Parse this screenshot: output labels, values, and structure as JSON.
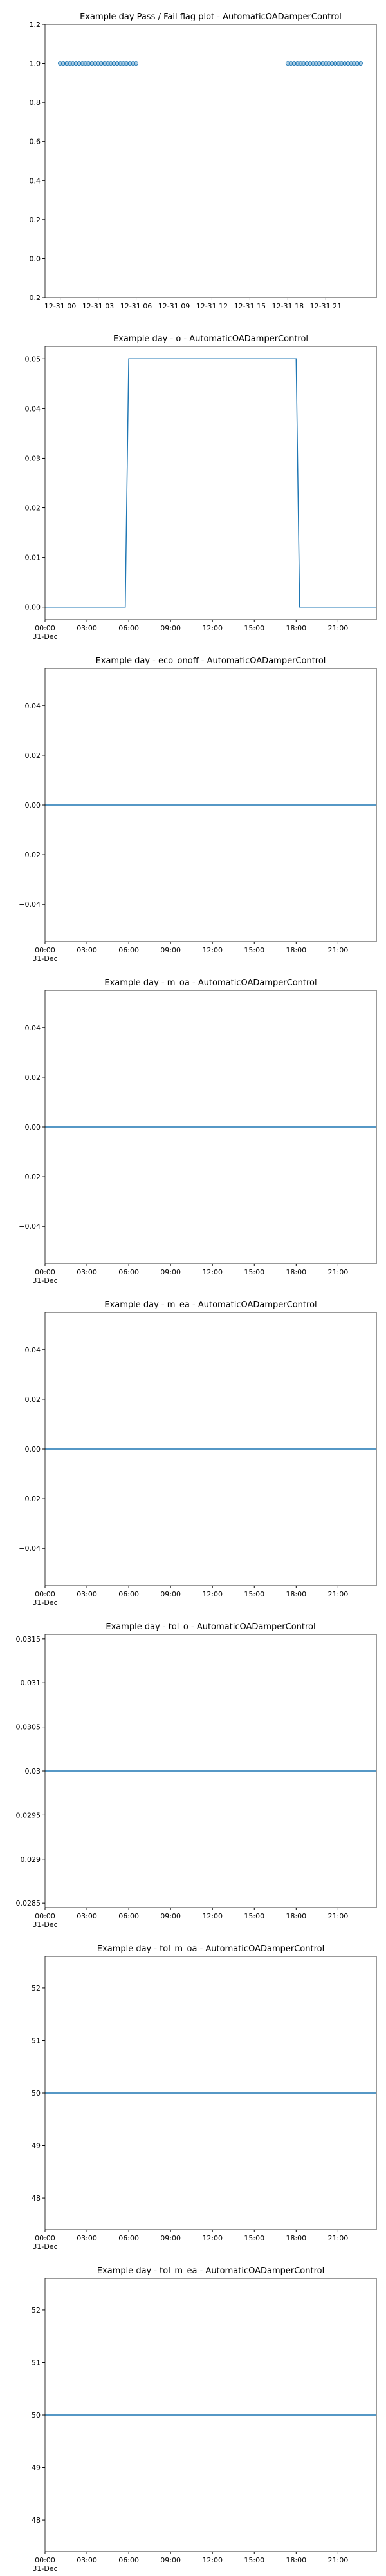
{
  "chart_data": [
    {
      "type": "scatter",
      "title": "Example day Pass / Fail flag plot - AutomaticOADamperControl",
      "color": "#1f77b4",
      "x": [
        0,
        0.25,
        0.5,
        0.75,
        1,
        1.25,
        1.5,
        1.75,
        2,
        2.25,
        2.5,
        2.75,
        3,
        3.25,
        3.5,
        3.75,
        4,
        4.25,
        4.5,
        4.75,
        5,
        5.25,
        5.5,
        5.75,
        6,
        18,
        18.25,
        18.5,
        18.75,
        19,
        19.25,
        19.5,
        19.75,
        20,
        20.25,
        20.5,
        20.75,
        21,
        21.25,
        21.5,
        21.75,
        22,
        22.25,
        22.5,
        22.75,
        23,
        23.25,
        23.5,
        23.75
      ],
      "values": [
        1,
        1,
        1,
        1,
        1,
        1,
        1,
        1,
        1,
        1,
        1,
        1,
        1,
        1,
        1,
        1,
        1,
        1,
        1,
        1,
        1,
        1,
        1,
        1,
        1,
        1,
        1,
        1,
        1,
        1,
        1,
        1,
        1,
        1,
        1,
        1,
        1,
        1,
        1,
        1,
        1,
        1,
        1,
        1,
        1,
        1,
        1,
        1,
        1
      ],
      "xlim": [
        -1.2,
        25
      ],
      "ylim": [
        -0.2,
        1.2
      ],
      "xticks": [
        {
          "value": 0,
          "label": "12-31 00"
        },
        {
          "value": 3,
          "label": "12-31 03"
        },
        {
          "value": 6,
          "label": "12-31 06"
        },
        {
          "value": 9,
          "label": "12-31 09"
        },
        {
          "value": 12,
          "label": "12-31 12"
        },
        {
          "value": 15,
          "label": "12-31 15"
        },
        {
          "value": 18,
          "label": "12-31 18"
        },
        {
          "value": 21,
          "label": "12-31 21"
        }
      ],
      "yticks": [
        {
          "value": -0.2,
          "label": "−0.2"
        },
        {
          "value": 0,
          "label": "0.0"
        },
        {
          "value": 0.2,
          "label": "0.2"
        },
        {
          "value": 0.4,
          "label": "0.4"
        },
        {
          "value": 0.6,
          "label": "0.6"
        },
        {
          "value": 0.8,
          "label": "0.8"
        },
        {
          "value": 1,
          "label": "1.0"
        },
        {
          "value": 1.2,
          "label": "1.2"
        }
      ]
    },
    {
      "type": "line",
      "title": "Example day - o - AutomaticOADamperControl",
      "color": "#1f77b4",
      "x": [
        0,
        5.75,
        6,
        18,
        18.25,
        23.75
      ],
      "values": [
        0,
        0,
        0.05,
        0.05,
        0,
        0
      ],
      "xlim": [
        0,
        23.75
      ],
      "ylim": [
        -0.0025,
        0.0525
      ],
      "xticks": [
        {
          "value": 0,
          "label": "00:00\n31-Dec"
        },
        {
          "value": 3,
          "label": "03:00"
        },
        {
          "value": 6,
          "label": "06:00"
        },
        {
          "value": 9,
          "label": "09:00"
        },
        {
          "value": 12,
          "label": "12:00"
        },
        {
          "value": 15,
          "label": "15:00"
        },
        {
          "value": 18,
          "label": "18:00"
        },
        {
          "value": 21,
          "label": "21:00"
        }
      ],
      "yticks": [
        {
          "value": 0,
          "label": "0.00"
        },
        {
          "value": 0.01,
          "label": "0.01"
        },
        {
          "value": 0.02,
          "label": "0.02"
        },
        {
          "value": 0.03,
          "label": "0.03"
        },
        {
          "value": 0.04,
          "label": "0.04"
        },
        {
          "value": 0.05,
          "label": "0.05"
        }
      ]
    },
    {
      "type": "line",
      "title": "Example day - eco_onoff - AutomaticOADamperControl",
      "color": "#1f77b4",
      "x": [
        0,
        23.75
      ],
      "values": [
        0,
        0
      ],
      "xlim": [
        0,
        23.75
      ],
      "ylim": [
        -0.055,
        0.055
      ],
      "xticks": [
        {
          "value": 0,
          "label": "00:00\n31-Dec"
        },
        {
          "value": 3,
          "label": "03:00"
        },
        {
          "value": 6,
          "label": "06:00"
        },
        {
          "value": 9,
          "label": "09:00"
        },
        {
          "value": 12,
          "label": "12:00"
        },
        {
          "value": 15,
          "label": "15:00"
        },
        {
          "value": 18,
          "label": "18:00"
        },
        {
          "value": 21,
          "label": "21:00"
        }
      ],
      "yticks": [
        {
          "value": -0.04,
          "label": "−0.04"
        },
        {
          "value": -0.02,
          "label": "−0.02"
        },
        {
          "value": 0,
          "label": "0.00"
        },
        {
          "value": 0.02,
          "label": "0.02"
        },
        {
          "value": 0.04,
          "label": "0.04"
        }
      ]
    },
    {
      "type": "line",
      "title": "Example day - m_oa - AutomaticOADamperControl",
      "color": "#1f77b4",
      "x": [
        0,
        23.75
      ],
      "values": [
        0,
        0
      ],
      "xlim": [
        0,
        23.75
      ],
      "ylim": [
        -0.055,
        0.055
      ],
      "xticks": [
        {
          "value": 0,
          "label": "00:00\n31-Dec"
        },
        {
          "value": 3,
          "label": "03:00"
        },
        {
          "value": 6,
          "label": "06:00"
        },
        {
          "value": 9,
          "label": "09:00"
        },
        {
          "value": 12,
          "label": "12:00"
        },
        {
          "value": 15,
          "label": "15:00"
        },
        {
          "value": 18,
          "label": "18:00"
        },
        {
          "value": 21,
          "label": "21:00"
        }
      ],
      "yticks": [
        {
          "value": -0.04,
          "label": "−0.04"
        },
        {
          "value": -0.02,
          "label": "−0.02"
        },
        {
          "value": 0,
          "label": "0.00"
        },
        {
          "value": 0.02,
          "label": "0.02"
        },
        {
          "value": 0.04,
          "label": "0.04"
        }
      ]
    },
    {
      "type": "line",
      "title": "Example day - m_ea - AutomaticOADamperControl",
      "color": "#1f77b4",
      "x": [
        0,
        23.75
      ],
      "values": [
        0,
        0
      ],
      "xlim": [
        0,
        23.75
      ],
      "ylim": [
        -0.055,
        0.055
      ],
      "xticks": [
        {
          "value": 0,
          "label": "00:00\n31-Dec"
        },
        {
          "value": 3,
          "label": "03:00"
        },
        {
          "value": 6,
          "label": "06:00"
        },
        {
          "value": 9,
          "label": "09:00"
        },
        {
          "value": 12,
          "label": "12:00"
        },
        {
          "value": 15,
          "label": "15:00"
        },
        {
          "value": 18,
          "label": "18:00"
        },
        {
          "value": 21,
          "label": "21:00"
        }
      ],
      "yticks": [
        {
          "value": -0.04,
          "label": "−0.04"
        },
        {
          "value": -0.02,
          "label": "−0.02"
        },
        {
          "value": 0,
          "label": "0.00"
        },
        {
          "value": 0.02,
          "label": "0.02"
        },
        {
          "value": 0.04,
          "label": "0.04"
        }
      ]
    },
    {
      "type": "line",
      "title": "Example day - tol_o - AutomaticOADamperControl",
      "color": "#1f77b4",
      "x": [
        0,
        23.75
      ],
      "values": [
        0.03,
        0.03
      ],
      "xlim": [
        0,
        23.75
      ],
      "ylim": [
        0.02845,
        0.03155
      ],
      "xticks": [
        {
          "value": 0,
          "label": "00:00\n31-Dec"
        },
        {
          "value": 3,
          "label": "03:00"
        },
        {
          "value": 6,
          "label": "06:00"
        },
        {
          "value": 9,
          "label": "09:00"
        },
        {
          "value": 12,
          "label": "12:00"
        },
        {
          "value": 15,
          "label": "15:00"
        },
        {
          "value": 18,
          "label": "18:00"
        },
        {
          "value": 21,
          "label": "21:00"
        }
      ],
      "yticks": [
        0.0285,
        0.029,
        0.0295,
        0.03,
        0.0305,
        0.031,
        0.0315
      ]
    },
    {
      "type": "line",
      "title": "Example day - tol_m_oa - AutomaticOADamperControl",
      "color": "#1f77b4",
      "x": [
        0,
        23.75
      ],
      "values": [
        50,
        50
      ],
      "xlim": [
        0,
        23.75
      ],
      "ylim": [
        47.4,
        52.6
      ],
      "xticks": [
        {
          "value": 0,
          "label": "00:00\n31-Dec"
        },
        {
          "value": 3,
          "label": "03:00"
        },
        {
          "value": 6,
          "label": "06:00"
        },
        {
          "value": 9,
          "label": "09:00"
        },
        {
          "value": 12,
          "label": "12:00"
        },
        {
          "value": 15,
          "label": "15:00"
        },
        {
          "value": 18,
          "label": "18:00"
        },
        {
          "value": 21,
          "label": "21:00"
        }
      ],
      "yticks": [
        48,
        49,
        50,
        51,
        52
      ]
    },
    {
      "type": "line",
      "title": "Example day - tol_m_ea - AutomaticOADamperControl",
      "color": "#1f77b4",
      "x": [
        0,
        23.75
      ],
      "values": [
        50,
        50
      ],
      "xlim": [
        0,
        23.75
      ],
      "ylim": [
        47.4,
        52.6
      ],
      "xticks": [
        {
          "value": 0,
          "label": "00:00\n31-Dec"
        },
        {
          "value": 3,
          "label": "03:00"
        },
        {
          "value": 6,
          "label": "06:00"
        },
        {
          "value": 9,
          "label": "09:00"
        },
        {
          "value": 12,
          "label": "12:00"
        },
        {
          "value": 15,
          "label": "15:00"
        },
        {
          "value": 18,
          "label": "18:00"
        },
        {
          "value": 21,
          "label": "21:00"
        }
      ],
      "yticks": [
        48,
        49,
        50,
        51,
        52
      ]
    }
  ]
}
